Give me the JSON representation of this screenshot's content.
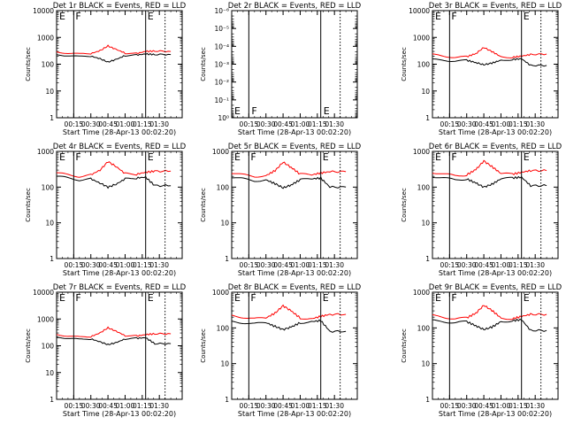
{
  "chart_data": [
    {
      "type": "line",
      "title": "Det 1r BLACK = Events, RED = LLD",
      "xlabel": "Start Time (28-Apr-13 00:02:20)",
      "ylabel": "Counts/sec",
      "scale": "log",
      "ylim": [
        1,
        10000
      ],
      "ytick_labels": [
        "1",
        "10",
        "100",
        "1000",
        "10000"
      ],
      "yticks": [
        1,
        10,
        100,
        1000,
        10000
      ],
      "xlim": [
        0,
        110
      ],
      "xtick_labels": [
        "00:15",
        "00:30",
        "00:45",
        "01:00",
        "01:15",
        "01:30"
      ],
      "xticks": [
        15,
        30,
        45,
        60,
        75,
        90
      ],
      "markers": [
        {
          "t": 15,
          "label": "F",
          "style": "solid"
        },
        {
          "t": 78,
          "label": "E",
          "style": "solid"
        },
        {
          "t": 95,
          "label": "",
          "style": "dotted"
        }
      ],
      "corner_label": "E",
      "series": [
        {
          "color": "#ff0000",
          "x": [
            0,
            10,
            20,
            30,
            38,
            45,
            52,
            60,
            70,
            78,
            86,
            100
          ],
          "values": [
            290,
            260,
            240,
            250,
            320,
            480,
            360,
            260,
            250,
            300,
            310,
            300
          ]
        },
        {
          "color": "#000000",
          "x": [
            0,
            10,
            20,
            30,
            38,
            45,
            52,
            60,
            70,
            78,
            86,
            100
          ],
          "values": [
            230,
            210,
            190,
            200,
            160,
            120,
            150,
            210,
            220,
            240,
            230,
            230
          ]
        }
      ]
    },
    {
      "type": "line",
      "title": "Det 2r BLACK = Events, RED = LLD",
      "xlabel": "Start Time (28-Apr-13 00:02:20)",
      "ylabel": "Counts/sec",
      "scale": "log",
      "ylim": [
        1,
        1e-06
      ],
      "ytick_labels": [
        "10⁰",
        "10⁻¹",
        "10⁻²",
        "10⁻³",
        "10⁻⁴",
        "10⁻⁵",
        "10⁻⁶"
      ],
      "yticks": [
        1,
        0.1,
        0.01,
        0.001,
        0.0001,
        1e-05,
        1e-06
      ],
      "xlim": [
        0,
        110
      ],
      "xtick_labels": [
        "00:15",
        "00:30",
        "00:45",
        "01:00",
        "01:15",
        "01:30"
      ],
      "xticks": [
        15,
        30,
        45,
        60,
        75,
        90
      ],
      "markers": [
        {
          "t": 15,
          "label": "F",
          "style": "solid"
        },
        {
          "t": 78,
          "label": "E",
          "style": "solid"
        },
        {
          "t": 95,
          "label": "",
          "style": "dotted"
        }
      ],
      "corner_label": "E",
      "series": []
    },
    {
      "type": "line",
      "title": "Det 3r BLACK = Events, RED = LLD",
      "xlabel": "Start Time (28-Apr-13 00:02:20)",
      "ylabel": "Counts/sec",
      "scale": "log",
      "ylim": [
        1,
        10000
      ],
      "ytick_labels": [
        "1",
        "10",
        "100",
        "1000",
        "10000"
      ],
      "yticks": [
        1,
        10,
        100,
        1000,
        10000
      ],
      "xlim": [
        0,
        110
      ],
      "xtick_labels": [
        "00:15",
        "00:30",
        "00:45",
        "01:00",
        "01:15",
        "01:30"
      ],
      "xticks": [
        15,
        30,
        45,
        60,
        75,
        90
      ],
      "markers": [
        {
          "t": 15,
          "label": "F",
          "style": "solid"
        },
        {
          "t": 78,
          "label": "E",
          "style": "solid"
        },
        {
          "t": 95,
          "label": "",
          "style": "dotted"
        }
      ],
      "corner_label": "E",
      "series": [
        {
          "color": "#ff0000",
          "x": [
            0,
            10,
            20,
            30,
            38,
            45,
            52,
            60,
            70,
            78,
            86,
            100
          ],
          "values": [
            230,
            200,
            180,
            190,
            250,
            420,
            300,
            190,
            180,
            200,
            230,
            240
          ]
        },
        {
          "color": "#000000",
          "x": [
            0,
            10,
            20,
            30,
            38,
            45,
            52,
            60,
            70,
            78,
            86,
            100
          ],
          "values": [
            150,
            140,
            130,
            140,
            115,
            95,
            110,
            140,
            150,
            160,
            90,
            90
          ]
        }
      ]
    },
    {
      "type": "line",
      "title": "Det 4r BLACK = Events, RED = LLD",
      "xlabel": "Start Time (28-Apr-13 00:02:20)",
      "ylabel": "Counts/sec",
      "scale": "log",
      "ylim": [
        1,
        1000
      ],
      "ytick_labels": [
        "1",
        "10",
        "100",
        "1000"
      ],
      "yticks": [
        1,
        10,
        100,
        1000
      ],
      "xlim": [
        0,
        110
      ],
      "xtick_labels": [
        "00:15",
        "00:30",
        "00:45",
        "01:00",
        "01:15",
        "01:30"
      ],
      "xticks": [
        15,
        30,
        45,
        60,
        75,
        90
      ],
      "markers": [
        {
          "t": 15,
          "label": "F",
          "style": "solid"
        },
        {
          "t": 78,
          "label": "E",
          "style": "solid"
        },
        {
          "t": 95,
          "label": "",
          "style": "dotted"
        }
      ],
      "corner_label": "E",
      "series": [
        {
          "color": "#ff0000",
          "x": [
            0,
            10,
            20,
            30,
            38,
            45,
            52,
            60,
            70,
            78,
            86,
            100
          ],
          "values": [
            250,
            220,
            200,
            220,
            300,
            520,
            380,
            240,
            230,
            260,
            280,
            280
          ]
        },
        {
          "color": "#000000",
          "x": [
            0,
            10,
            20,
            30,
            38,
            45,
            52,
            60,
            70,
            78,
            86,
            100
          ],
          "values": [
            200,
            180,
            160,
            170,
            130,
            100,
            120,
            170,
            180,
            190,
            110,
            110
          ]
        }
      ]
    },
    {
      "type": "line",
      "title": "Det 5r BLACK = Events, RED = LLD",
      "xlabel": "Start Time (28-Apr-13 00:02:20)",
      "ylabel": "Counts/sec",
      "scale": "log",
      "ylim": [
        1,
        1000
      ],
      "ytick_labels": [
        "1",
        "10",
        "100",
        "1000"
      ],
      "yticks": [
        1,
        10,
        100,
        1000
      ],
      "xlim": [
        0,
        110
      ],
      "xtick_labels": [
        "00:15",
        "00:30",
        "00:45",
        "01:00",
        "01:15",
        "01:30"
      ],
      "xticks": [
        15,
        30,
        45,
        60,
        75,
        90
      ],
      "markers": [
        {
          "t": 15,
          "label": "F",
          "style": "solid"
        },
        {
          "t": 78,
          "label": "E",
          "style": "solid"
        },
        {
          "t": 95,
          "label": "",
          "style": "dotted"
        }
      ],
      "corner_label": "E",
      "series": [
        {
          "color": "#ff0000",
          "x": [
            0,
            10,
            20,
            30,
            38,
            45,
            52,
            60,
            70,
            78,
            86,
            100
          ],
          "values": [
            250,
            220,
            200,
            210,
            290,
            500,
            360,
            230,
            220,
            250,
            270,
            270
          ]
        },
        {
          "color": "#000000",
          "x": [
            0,
            10,
            20,
            30,
            38,
            45,
            52,
            60,
            70,
            78,
            86,
            100
          ],
          "values": [
            190,
            170,
            150,
            160,
            125,
            95,
            115,
            160,
            170,
            180,
            100,
            100
          ]
        }
      ]
    },
    {
      "type": "line",
      "title": "Det 6r BLACK = Events, RED = LLD",
      "xlabel": "Start Time (28-Apr-13 00:02:20)",
      "ylabel": "Counts/sec",
      "scale": "log",
      "ylim": [
        1,
        1000
      ],
      "ytick_labels": [
        "1",
        "10",
        "100",
        "1000"
      ],
      "yticks": [
        1,
        10,
        100,
        1000
      ],
      "xlim": [
        0,
        110
      ],
      "xtick_labels": [
        "00:15",
        "00:30",
        "00:45",
        "01:00",
        "01:15",
        "01:30"
      ],
      "xticks": [
        15,
        30,
        45,
        60,
        75,
        90
      ],
      "markers": [
        {
          "t": 15,
          "label": "F",
          "style": "solid"
        },
        {
          "t": 78,
          "label": "E",
          "style": "solid"
        },
        {
          "t": 95,
          "label": "",
          "style": "dotted"
        }
      ],
      "corner_label": "E",
      "series": [
        {
          "color": "#ff0000",
          "x": [
            0,
            10,
            20,
            30,
            38,
            45,
            52,
            60,
            70,
            78,
            86,
            100
          ],
          "values": [
            260,
            230,
            210,
            220,
            310,
            540,
            380,
            240,
            230,
            260,
            290,
            290
          ]
        },
        {
          "color": "#000000",
          "x": [
            0,
            10,
            20,
            30,
            38,
            45,
            52,
            60,
            70,
            78,
            86,
            100
          ],
          "values": [
            200,
            180,
            160,
            170,
            130,
            100,
            120,
            170,
            180,
            190,
            110,
            110
          ]
        }
      ]
    },
    {
      "type": "line",
      "title": "Det 7r BLACK = Events, RED = LLD",
      "xlabel": "Start Time (28-Apr-13 00:02:20)",
      "ylabel": "Counts/sec",
      "scale": "log",
      "ylim": [
        1,
        10000
      ],
      "ytick_labels": [
        "1",
        "10",
        "100",
        "1000",
        "10000"
      ],
      "yticks": [
        1,
        10,
        100,
        1000,
        10000
      ],
      "xlim": [
        0,
        110
      ],
      "xtick_labels": [
        "00:15",
        "00:30",
        "00:45",
        "01:00",
        "01:15",
        "01:30"
      ],
      "xticks": [
        15,
        30,
        45,
        60,
        75,
        90
      ],
      "markers": [
        {
          "t": 15,
          "label": "F",
          "style": "solid"
        },
        {
          "t": 78,
          "label": "E",
          "style": "solid"
        },
        {
          "t": 95,
          "label": "",
          "style": "dotted"
        }
      ],
      "corner_label": "E",
      "series": [
        {
          "color": "#ff0000",
          "x": [
            0,
            10,
            20,
            30,
            38,
            45,
            52,
            60,
            70,
            78,
            86,
            100
          ],
          "values": [
            270,
            230,
            210,
            220,
            300,
            470,
            350,
            240,
            230,
            260,
            280,
            280
          ]
        },
        {
          "color": "#000000",
          "x": [
            0,
            10,
            20,
            30,
            38,
            45,
            52,
            60,
            70,
            78,
            86,
            100
          ],
          "values": [
            220,
            190,
            170,
            180,
            140,
            110,
            130,
            180,
            190,
            200,
            120,
            120
          ]
        }
      ]
    },
    {
      "type": "line",
      "title": "Det 8r BLACK = Events, RED = LLD",
      "xlabel": "Start Time (28-Apr-13 00:02:20)",
      "ylabel": "Counts/sec",
      "scale": "log",
      "ylim": [
        1,
        1000
      ],
      "ytick_labels": [
        "1",
        "10",
        "100",
        "1000"
      ],
      "yticks": [
        1,
        10,
        100,
        1000
      ],
      "xlim": [
        0,
        110
      ],
      "xtick_labels": [
        "00:15",
        "00:30",
        "00:45",
        "01:00",
        "01:15",
        "01:30"
      ],
      "xticks": [
        15,
        30,
        45,
        60,
        75,
        90
      ],
      "markers": [
        {
          "t": 15,
          "label": "F",
          "style": "solid"
        },
        {
          "t": 78,
          "label": "E",
          "style": "solid"
        },
        {
          "t": 95,
          "label": "",
          "style": "dotted"
        }
      ],
      "corner_label": "E",
      "series": [
        {
          "color": "#ff0000",
          "x": [
            0,
            10,
            20,
            30,
            38,
            45,
            52,
            60,
            70,
            78,
            86,
            100
          ],
          "values": [
            220,
            200,
            180,
            190,
            260,
            420,
            300,
            190,
            180,
            210,
            240,
            240
          ]
        },
        {
          "color": "#000000",
          "x": [
            0,
            10,
            20,
            30,
            38,
            45,
            52,
            60,
            70,
            78,
            86,
            100
          ],
          "values": [
            150,
            140,
            130,
            140,
            110,
            90,
            105,
            140,
            150,
            160,
            80,
            80
          ]
        }
      ]
    },
    {
      "type": "line",
      "title": "Det 9r BLACK = Events, RED = LLD",
      "xlabel": "Start Time (28-Apr-13 00:02:20)",
      "ylabel": "Counts/sec",
      "scale": "log",
      "ylim": [
        1,
        1000
      ],
      "ytick_labels": [
        "1",
        "10",
        "100",
        "1000"
      ],
      "yticks": [
        1,
        10,
        100,
        1000
      ],
      "xlim": [
        0,
        110
      ],
      "xtick_labels": [
        "00:15",
        "00:30",
        "00:45",
        "01:00",
        "01:15",
        "01:30"
      ],
      "xticks": [
        15,
        30,
        45,
        60,
        75,
        90
      ],
      "markers": [
        {
          "t": 15,
          "label": "F",
          "style": "solid"
        },
        {
          "t": 78,
          "label": "E",
          "style": "solid"
        },
        {
          "t": 95,
          "label": "",
          "style": "dotted"
        }
      ],
      "corner_label": "E",
      "series": [
        {
          "color": "#ff0000",
          "x": [
            0,
            10,
            20,
            30,
            38,
            45,
            52,
            60,
            70,
            78,
            86,
            100
          ],
          "values": [
            220,
            200,
            180,
            190,
            260,
            430,
            310,
            190,
            180,
            210,
            240,
            240
          ]
        },
        {
          "color": "#000000",
          "x": [
            0,
            10,
            20,
            30,
            38,
            45,
            52,
            60,
            70,
            78,
            86,
            100
          ],
          "values": [
            160,
            150,
            140,
            150,
            115,
            90,
            105,
            150,
            160,
            170,
            85,
            85
          ]
        }
      ]
    }
  ]
}
